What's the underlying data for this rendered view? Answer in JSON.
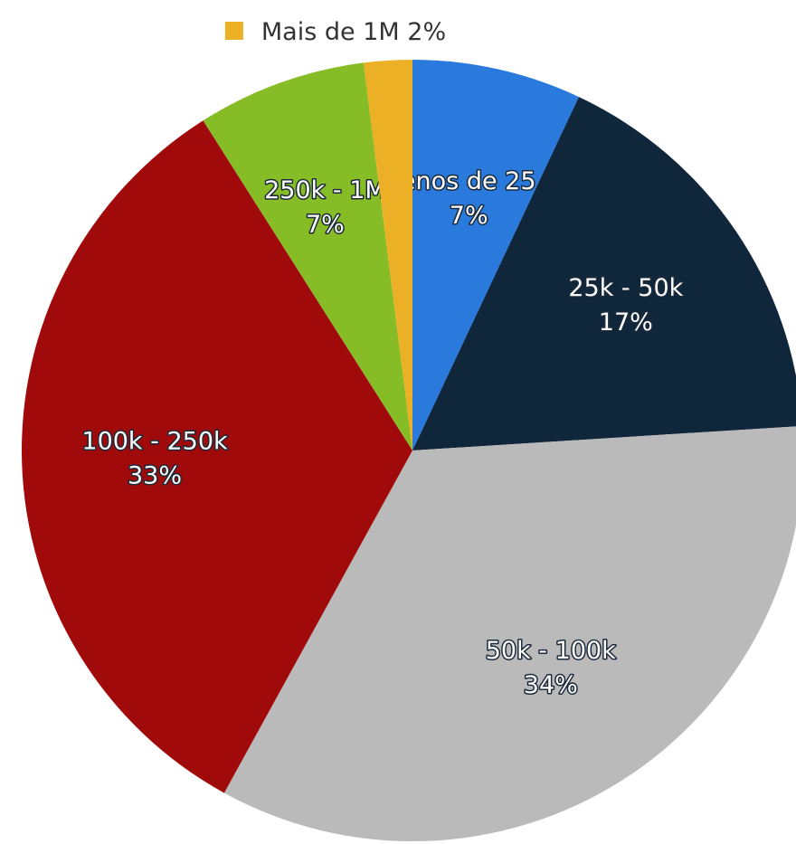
{
  "chart_data": {
    "type": "pie",
    "categories": [
      "Menos de 25 k",
      "25k - 50k",
      "50k - 100k",
      "100k - 250k",
      "250k - 1M",
      "Mais de 1M"
    ],
    "values": [
      7,
      17,
      34,
      33,
      7,
      2
    ],
    "value_labels": [
      "7%",
      "17%",
      "34%",
      "33%",
      "7%",
      "2%"
    ],
    "colors": [
      "#2a7ade",
      "#10263b",
      "#bababa",
      "#a10a0a",
      "#86bc25",
      "#ebb025"
    ]
  }
}
